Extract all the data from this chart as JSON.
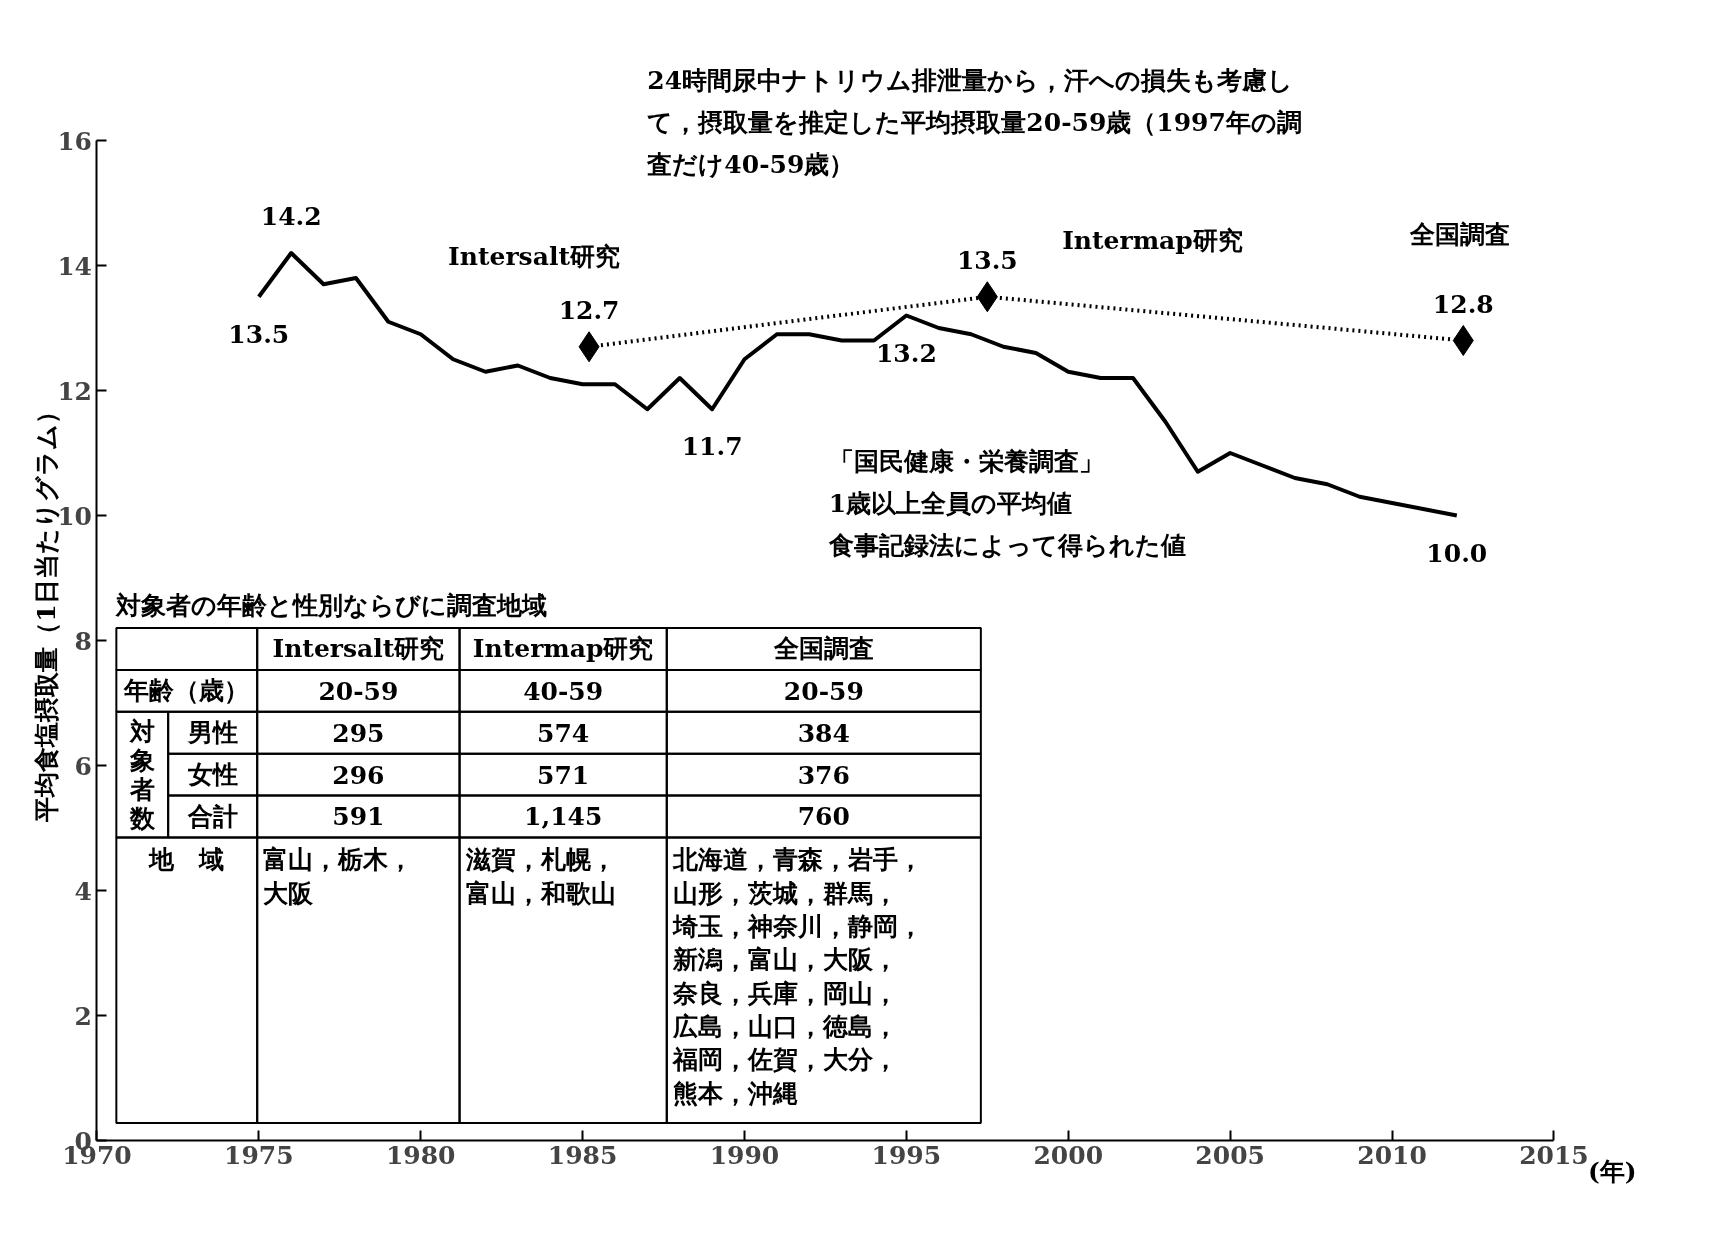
{
  "chart_data": [
    {
      "type": "line",
      "xlabel": "(年)",
      "ylabel": "平均食塩摂取量（1日当たりグラム）",
      "x": [
        1975,
        1976,
        1977,
        1978,
        1979,
        1980,
        1981,
        1982,
        1983,
        1984,
        1985,
        1986,
        1987,
        1988,
        1989,
        1990,
        1991,
        1992,
        1993,
        1994,
        1995,
        1996,
        1997,
        1998,
        1999,
        2000,
        2001,
        2002,
        2003,
        2004,
        2005,
        2006,
        2007,
        2008,
        2009,
        2010,
        2011,
        2012
      ],
      "xlim": [
        1970,
        2015
      ],
      "xticks": [
        1970,
        1975,
        1980,
        1985,
        1990,
        1995,
        2000,
        2005,
        2010,
        2015
      ],
      "ylim": [
        0,
        16
      ],
      "yticks": [
        0,
        2,
        4,
        6,
        8,
        10,
        12,
        14,
        16
      ],
      "grid": false,
      "series": [
        {
          "color": "#000000",
          "line_style": "solid",
          "marker": "none",
          "values": [
            13.5,
            14.2,
            13.7,
            13.8,
            13.1,
            12.9,
            12.5,
            12.3,
            12.4,
            12.2,
            12.1,
            12.1,
            11.7,
            12.2,
            11.7,
            12.5,
            12.9,
            12.9,
            12.8,
            12.8,
            13.2,
            13.0,
            12.9,
            12.7,
            12.6,
            12.3,
            12.2,
            12.2,
            11.5,
            10.7,
            11.0,
            10.8,
            10.6,
            10.5,
            10.3,
            10.2,
            10.1,
            10.0
          ],
          "value_labels": [
            "13.5",
            "14.2",
            null,
            null,
            null,
            null,
            null,
            null,
            null,
            null,
            null,
            null,
            null,
            null,
            "11.7",
            null,
            null,
            null,
            null,
            null,
            "13.2",
            null,
            null,
            null,
            null,
            null,
            null,
            null,
            null,
            null,
            null,
            null,
            null,
            null,
            null,
            null,
            null,
            "10.0"
          ]
        },
        {
          "color": "#000000",
          "line_style": "dotted",
          "marker": "diamond",
          "x": [
            1985.2,
            1997.5,
            2012.2
          ],
          "values": [
            12.7,
            13.5,
            12.8
          ],
          "value_labels": [
            "12.7",
            "13.5",
            "12.8"
          ]
        }
      ],
      "annotations": [
        "24時間尿中ナトリウム排泄量から，汗への損失も考慮して，摂取量を推定した平均摂取量20-59歳（1997年の調査だけ40-59歳）",
        "「国民健康・栄養調査」1歳以上全員の平均値食事記録法によって得られた値",
        "Intersalt研究",
        "Intermap研究",
        "全国調査"
      ]
    },
    {
      "type": "other",
      "title": "対象者の年齢と性別ならびに調査地域",
      "categories": [
        null,
        "Intersalt研究",
        "Intermap研究",
        "全国調査"
      ],
      "y_categories": [
        "年齢（歳）",
        "男性",
        "女性",
        "合計",
        "地　域"
      ],
      "cell_labels": [
        [
          "20-59",
          "40-59",
          "20-59"
        ],
        [
          "295",
          "574",
          "384"
        ],
        [
          "296",
          "571",
          "376"
        ],
        [
          "591",
          "1,145",
          "760"
        ],
        [
          "富山，栃木，大阪",
          "滋賀，札幌，富山，和歌山",
          "北海道，青森，岩手，山形，茨城，群馬，埼玉，神奈川，静岡，新潟，富山，大阪，奈良，兵庫，岡山，広島，山口，徳島，福岡，佐賀，大分，熊本，沖縄"
        ]
      ],
      "annotations": [
        "対象者数"
      ]
    }
  ]
}
